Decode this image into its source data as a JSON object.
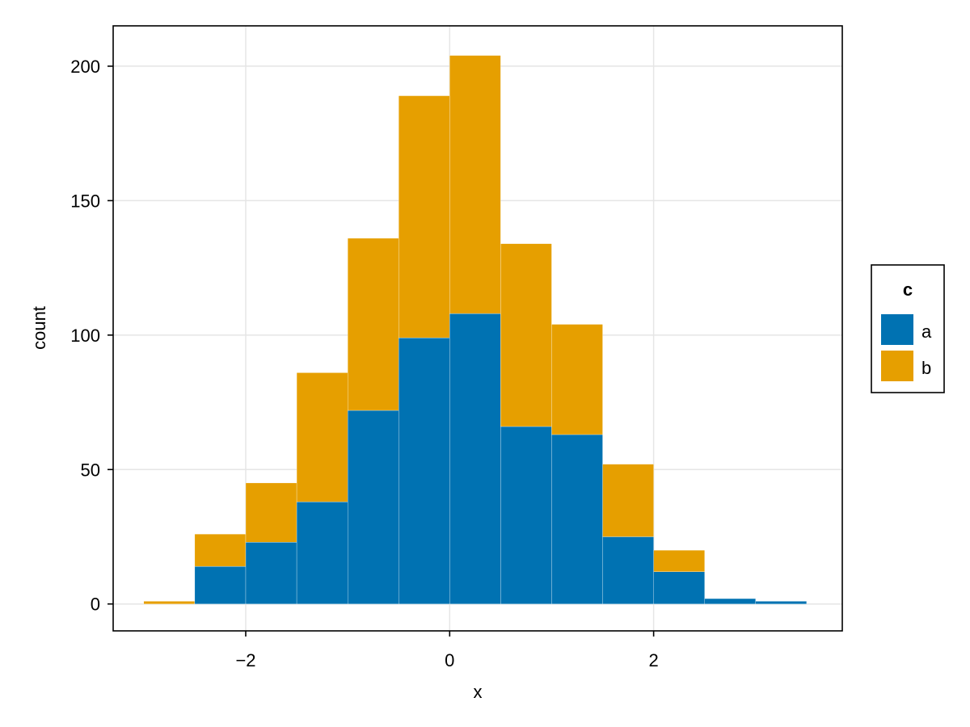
{
  "chart_data": {
    "type": "bar",
    "stacked": true,
    "bin_width": 0.5,
    "x": [
      -3.0,
      -2.5,
      -2.0,
      -1.5,
      -1.0,
      -0.5,
      0.0,
      0.5,
      1.0,
      1.5,
      2.0,
      2.5,
      3.0
    ],
    "series": [
      {
        "name": "a",
        "color": "#0072b2",
        "values": [
          0,
          14,
          23,
          38,
          72,
          99,
          108,
          66,
          63,
          25,
          12,
          2,
          1
        ]
      },
      {
        "name": "b",
        "color": "#e69f00",
        "values": [
          1,
          12,
          22,
          48,
          64,
          90,
          96,
          68,
          41,
          27,
          8,
          0,
          0
        ]
      }
    ],
    "xlabel": "x",
    "ylabel": "count",
    "xlim": [
      -3.3,
      3.85
    ],
    "ylim": [
      -10,
      215
    ],
    "xticks": [
      -2,
      0,
      2
    ],
    "xtick_labels": [
      "−2",
      "0",
      "2"
    ],
    "yticks": [
      0,
      50,
      100,
      150,
      200
    ],
    "ytick_labels": [
      "0",
      "50",
      "100",
      "150",
      "200"
    ],
    "grid": true,
    "legend": {
      "title": "c",
      "placement": "right"
    }
  }
}
